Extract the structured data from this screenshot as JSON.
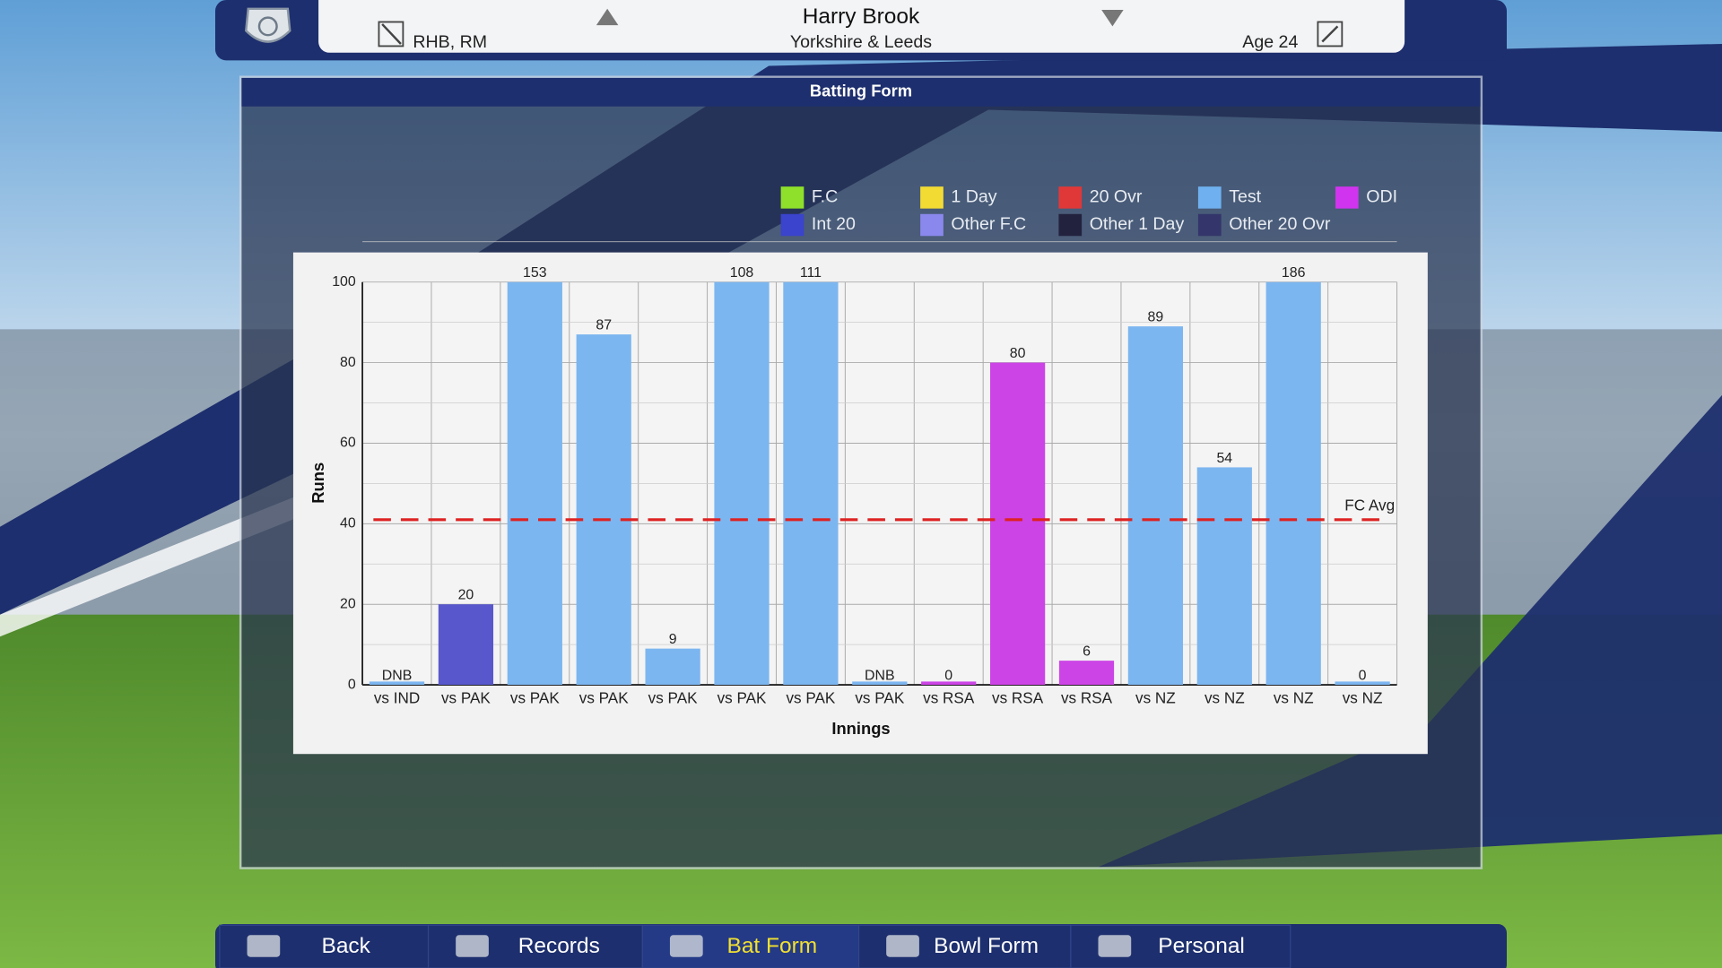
{
  "header": {
    "name": "Harry Brook",
    "team": "Yorkshire & Leeds",
    "role": "RHB, RM",
    "age": "Age 24"
  },
  "panel_title": "Batting Form",
  "nav": [
    "Back",
    "Records",
    "Bat Form",
    "Bowl Form",
    "Personal"
  ],
  "nav_active": 2,
  "chart_data": {
    "type": "bar",
    "x_label": "Innings",
    "y_label": "Runs",
    "categories": [
      "vs IND",
      "vs PAK",
      "vs PAK",
      "vs PAK",
      "vs PAK",
      "vs PAK",
      "vs PAK",
      "vs PAK",
      "vs RSA",
      "vs RSA",
      "vs RSA",
      "vs NZ",
      "vs NZ",
      "vs NZ",
      "vs NZ"
    ],
    "values": [
      null,
      20,
      153,
      87,
      9,
      108,
      111,
      null,
      0,
      80,
      6,
      89,
      54,
      186,
      0
    ],
    "value_labels": [
      "DNB",
      "20",
      "153",
      "87",
      "9",
      "108",
      "111",
      "DNB",
      "0",
      "80",
      "6",
      "89",
      "54",
      "186",
      "0"
    ],
    "bar_colors": [
      "#7cb6f0",
      "#5858cc",
      "#7cb6f0",
      "#7cb6f0",
      "#7cb6f0",
      "#7cb6f0",
      "#7cb6f0",
      "#7cb6f0",
      "#cc44e6",
      "#cc44e6",
      "#cc44e6",
      "#7cb6f0",
      "#7cb6f0",
      "#7cb6f0",
      "#7cb6f0"
    ],
    "ylim": [
      0,
      100
    ],
    "yticks": [
      0,
      20,
      40,
      60,
      80,
      100
    ],
    "grid": true,
    "reference_line": {
      "value": 41,
      "label": "FC Avg",
      "color": "#dd2222"
    },
    "legend": [
      {
        "name": "F.C",
        "color": "#8fe02a"
      },
      {
        "name": "1 Day",
        "color": "#f2dc34"
      },
      {
        "name": "20 Ovr",
        "color": "#e03838"
      },
      {
        "name": "Test",
        "color": "#6fb1f0"
      },
      {
        "name": "ODI",
        "color": "#d034ee"
      },
      {
        "name": "Int 20",
        "color": "#3a44cc"
      },
      {
        "name": "Other F.C",
        "color": "#8a88ec"
      },
      {
        "name": "Other 1 Day",
        "color": "#22223e"
      },
      {
        "name": "Other 20 Ovr",
        "color": "#34356a"
      }
    ]
  }
}
